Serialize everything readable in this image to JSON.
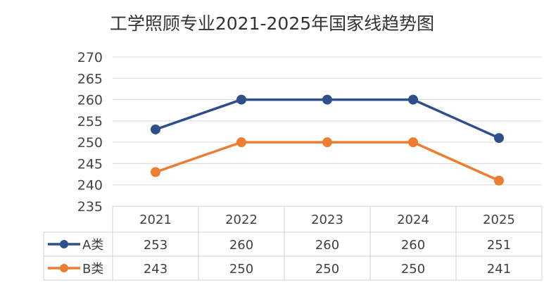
{
  "chart_data": {
    "type": "line",
    "title": "工学照顾专业2021-2025年国家线趋势图",
    "categories": [
      "2021",
      "2022",
      "2023",
      "2024",
      "2025"
    ],
    "series": [
      {
        "name": "A类",
        "values": [
          253,
          260,
          260,
          260,
          251
        ],
        "color": "#2E4F8C"
      },
      {
        "name": "B类",
        "values": [
          243,
          250,
          250,
          250,
          241
        ],
        "color": "#ED7D31"
      }
    ],
    "ylim": [
      235,
      270
    ],
    "yticks": [
      "235",
      "240",
      "245",
      "250",
      "255",
      "260",
      "265",
      "270"
    ],
    "grid": true,
    "legend": "data-table",
    "xlabel": "",
    "ylabel": ""
  }
}
